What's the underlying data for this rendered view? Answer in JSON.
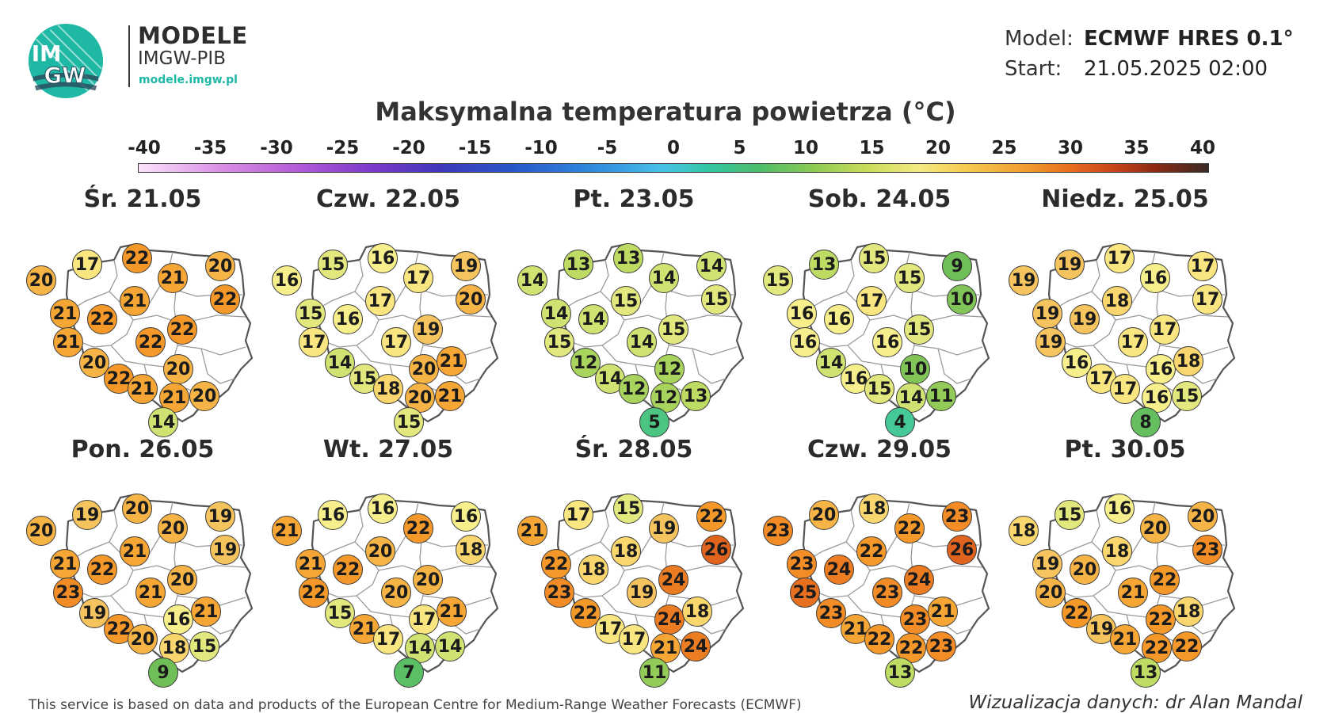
{
  "brand": {
    "logo_text_top": "IM",
    "logo_text_bottom": "GW",
    "title": "MODELE",
    "subtitle": "IMGW-PIB",
    "url": "modele.imgw.pl"
  },
  "model_info": {
    "model_label": "Model:",
    "model_value": "ECMWF HRES 0.1°",
    "start_label": "Start:",
    "start_value": "21.05.2025 02:00"
  },
  "title": "Maksymalna temperatura powietrza (°C)",
  "colorbar": {
    "ticks": [
      "-40",
      "-35",
      "-30",
      "-25",
      "-20",
      "-15",
      "-10",
      "-5",
      "0",
      "5",
      "10",
      "15",
      "20",
      "25",
      "30",
      "35",
      "40"
    ],
    "min": -40,
    "max": 40
  },
  "panels": [
    {
      "label": "Śr. 21.05",
      "temps": [
        20,
        17,
        22,
        21,
        20,
        22,
        21,
        22,
        21,
        22,
        21,
        22,
        20,
        20,
        22,
        21,
        21,
        20,
        14
      ]
    },
    {
      "label": "Czw. 22.05",
      "temps": [
        16,
        15,
        16,
        17,
        19,
        20,
        15,
        16,
        17,
        19,
        17,
        17,
        14,
        20,
        21,
        15,
        18,
        20,
        21,
        15
      ]
    },
    {
      "label": "Pt. 23.05",
      "temps": [
        14,
        13,
        13,
        14,
        14,
        15,
        14,
        14,
        15,
        15,
        15,
        14,
        12,
        12,
        14,
        12,
        12,
        13,
        5
      ]
    },
    {
      "label": "Sob. 24.05",
      "temps": [
        15,
        13,
        15,
        15,
        9,
        10,
        16,
        16,
        17,
        15,
        16,
        16,
        14,
        10,
        16,
        15,
        14,
        11,
        4
      ]
    },
    {
      "label": "Niedz. 25.05",
      "temps": [
        19,
        19,
        17,
        16,
        17,
        17,
        19,
        19,
        18,
        17,
        19,
        17,
        16,
        16,
        18,
        17,
        17,
        16,
        15,
        8
      ]
    },
    {
      "label": "Pon. 26.05",
      "temps": [
        20,
        19,
        20,
        20,
        19,
        19,
        21,
        22,
        21,
        20,
        23,
        21,
        19,
        16,
        21,
        22,
        20,
        18,
        15,
        9
      ]
    },
    {
      "label": "Wt. 27.05",
      "temps": [
        21,
        16,
        16,
        22,
        16,
        18,
        21,
        22,
        20,
        20,
        22,
        20,
        15,
        17,
        21,
        21,
        17,
        14,
        14,
        7
      ]
    },
    {
      "label": "Śr. 28.05",
      "temps": [
        21,
        17,
        15,
        19,
        22,
        26,
        22,
        18,
        18,
        24,
        23,
        19,
        22,
        24,
        18,
        17,
        17,
        21,
        24,
        11
      ]
    },
    {
      "label": "Czw. 29.05",
      "temps": [
        23,
        20,
        18,
        22,
        23,
        26,
        23,
        24,
        22,
        24,
        25,
        23,
        23,
        23,
        21,
        21,
        22,
        22,
        23,
        13
      ]
    },
    {
      "label": "Pt. 30.05",
      "temps": [
        18,
        15,
        16,
        20,
        20,
        23,
        19,
        20,
        18,
        22,
        20,
        21,
        22,
        22,
        18,
        19,
        21,
        22,
        22,
        13
      ]
    }
  ],
  "footer": {
    "source": "This service is based on data and products of the European Centre for Medium-Range Weather Forecasts (ECMWF)",
    "credit": "Wizualizacja danych: dr Alan Mandal"
  }
}
